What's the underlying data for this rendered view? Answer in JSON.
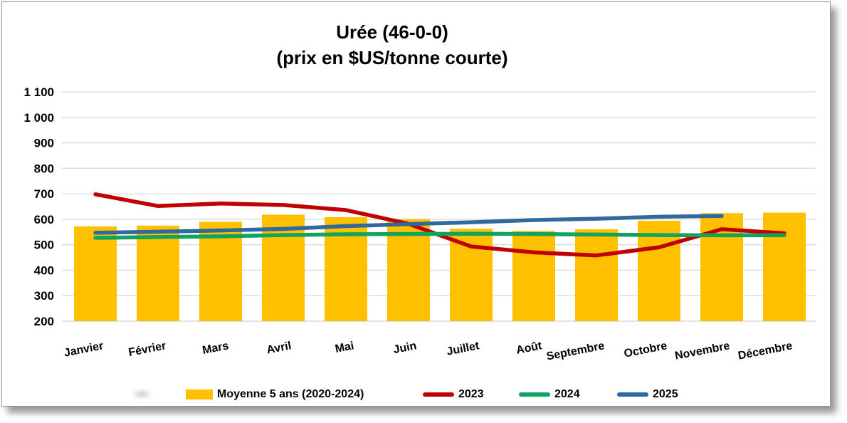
{
  "title": {
    "line1": "Urée (46-0-0)",
    "line2": "(prix en $US/tonne courte)"
  },
  "chart_data": {
    "type": "bar+line combo",
    "categories": [
      "Janvier",
      "Février",
      "Mars",
      "Avril",
      "Mai",
      "Juin",
      "Juillet",
      "Août",
      "Septembre",
      "Octobre",
      "Novembre",
      "Décembre"
    ],
    "series": [
      {
        "name": "Moyenne 5 ans (2020-2024)",
        "type": "bar",
        "color": "#FFC000",
        "values": [
          572,
          575,
          590,
          618,
          608,
          600,
          563,
          554,
          561,
          594,
          624,
          626
        ]
      },
      {
        "name": "2023",
        "type": "line",
        "color": "#C00000",
        "values": [
          698,
          652,
          662,
          656,
          636,
          582,
          493,
          470,
          458,
          490,
          561,
          545
        ]
      },
      {
        "name": "2024",
        "type": "line",
        "color": "#12A45F",
        "values": [
          527,
          530,
          533,
          538,
          541,
          542,
          543,
          542,
          540,
          538,
          537,
          537
        ]
      },
      {
        "name": "2025",
        "type": "line",
        "color": "#30699E",
        "values": [
          547,
          551,
          556,
          562,
          573,
          581,
          588,
          597,
          602,
          610,
          613,
          null
        ]
      }
    ],
    "title": "Urée (46-0-0) (prix en $US/tonne courte)",
    "xlabel": "",
    "ylabel": "",
    "ylim": [
      200,
      1100
    ],
    "ytick_step": 100,
    "ytick_labels": [
      "200",
      "300",
      "400",
      "500",
      "600",
      "700",
      "800",
      "900",
      "1 000",
      "1 100"
    ],
    "grid": "horizontal",
    "legend_position": "bottom"
  },
  "colors": {
    "gridline": "#D9D9D9",
    "axis_line": "#D0D0D0",
    "text": "#000000",
    "page_border": "#8F8F8F",
    "bar": "#FFC000",
    "line_2023": "#C00000",
    "line_2024": "#12A45F",
    "line_2025": "#30699E"
  }
}
